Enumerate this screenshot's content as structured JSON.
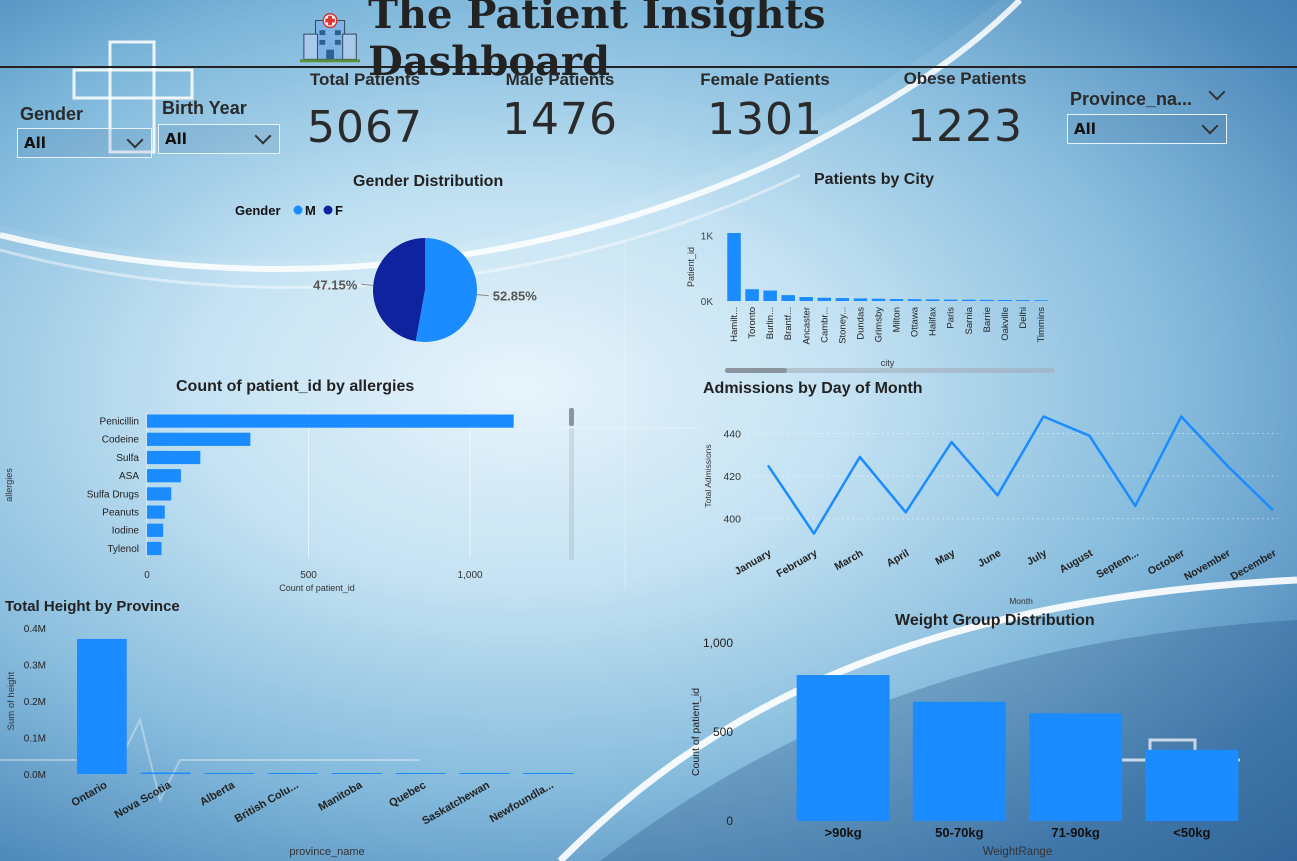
{
  "header": {
    "title": "The Patient Insights Dashboard"
  },
  "slicers": {
    "gender": {
      "label": "Gender",
      "value": "All"
    },
    "birth_year": {
      "label": "Birth Year",
      "value": "All"
    },
    "province": {
      "label": "Province_na...",
      "value": "All"
    }
  },
  "kpis": [
    {
      "label": "Total Patients",
      "value": "5067"
    },
    {
      "label": "Male Patients",
      "value": "1476"
    },
    {
      "label": "Female Patients",
      "value": "1301"
    },
    {
      "label": "Obese Patients",
      "value": "1223"
    }
  ],
  "colors": {
    "primary": "#1a8cff",
    "dark": "#10239e"
  },
  "chart_data": [
    {
      "id": "gender",
      "type": "pie",
      "title": "Gender Distribution",
      "legend_title": "Gender",
      "legend_placement": "top",
      "slices": [
        {
          "name": "M",
          "pct": 52.85,
          "label": "52.85%",
          "color": "#1a8cff"
        },
        {
          "name": "F",
          "pct": 47.15,
          "label": "47.15%",
          "color": "#10239e"
        }
      ]
    },
    {
      "id": "city",
      "type": "bar",
      "title": "Patients by City",
      "xlabel": "city",
      "ylabel": "Patient_id",
      "categories": [
        "Hamilt...",
        "Toronto",
        "Burlin...",
        "Brantf...",
        "Ancaster",
        "Cambr...",
        "Stoney...",
        "Dundas",
        "Grimsby",
        "Milton",
        "Ottawa",
        "Halifax",
        "Paris",
        "Sarnia",
        "Barrie",
        "Oakville",
        "Delhi",
        "Timmins"
      ],
      "values": [
        1040,
        180,
        160,
        90,
        60,
        50,
        45,
        40,
        35,
        30,
        28,
        25,
        22,
        20,
        18,
        16,
        14,
        12
      ],
      "yticks": [
        0,
        1000
      ],
      "ytick_labels": [
        "0K",
        "1K"
      ],
      "ylim": [
        0,
        1040
      ]
    },
    {
      "id": "allergies",
      "type": "bar",
      "orientation": "horizontal",
      "title": "Count of patient_id by allergies",
      "xlabel": "Count of patient_id",
      "ylabel": "allergies",
      "categories": [
        "Penicillin",
        "Codeine",
        "Sulfa",
        "ASA",
        "Sulfa Drugs",
        "Peanuts",
        "Iodine",
        "Tylenol"
      ],
      "values": [
        1135,
        320,
        165,
        105,
        75,
        55,
        50,
        45
      ],
      "xticks": [
        0,
        500,
        1000
      ],
      "xtick_labels": [
        "0",
        "500",
        "1,000"
      ],
      "xlim": [
        0,
        1300
      ]
    },
    {
      "id": "admissions",
      "type": "line",
      "title": "Admissions by Day of Month",
      "xlabel": "Month",
      "ylabel": "Total Admissions",
      "categories": [
        "January",
        "February",
        "March",
        "April",
        "May",
        "June",
        "July",
        "August",
        "Septem...",
        "October",
        "November",
        "December"
      ],
      "values": [
        425,
        393,
        429,
        403,
        436,
        411,
        448,
        439,
        406,
        448,
        425,
        404
      ],
      "yticks": [
        400,
        420,
        440
      ],
      "ylim": [
        390,
        452
      ]
    },
    {
      "id": "height",
      "type": "bar",
      "title": "Total Height by Province",
      "xlabel": "province_name",
      "ylabel": "Sum of height",
      "categories": [
        "Ontario",
        "Nova Scotia",
        "Alberta",
        "British Colu...",
        "Manitoba",
        "Quebec",
        "Saskatchewan",
        "Newfoundla..."
      ],
      "values": [
        370000,
        4000,
        1500,
        1200,
        800,
        700,
        500,
        300
      ],
      "yticks": [
        0,
        100000,
        200000,
        300000,
        400000
      ],
      "ytick_labels": [
        "0.0M",
        "0.1M",
        "0.2M",
        "0.3M",
        "0.4M"
      ],
      "ylim": [
        0,
        400000
      ]
    },
    {
      "id": "weight",
      "type": "bar",
      "title": "Weight Group Distribution",
      "xlabel": "WeightRange",
      "ylabel": "Count of patient_id",
      "categories": [
        ">90kg",
        "50-70kg",
        "71-90kg",
        "<50kg"
      ],
      "values": [
        820,
        670,
        605,
        400
      ],
      "yticks": [
        0,
        500,
        1000
      ],
      "ytick_labels": [
        "0",
        "500",
        "1,000"
      ],
      "ylim": [
        0,
        1000
      ]
    }
  ]
}
